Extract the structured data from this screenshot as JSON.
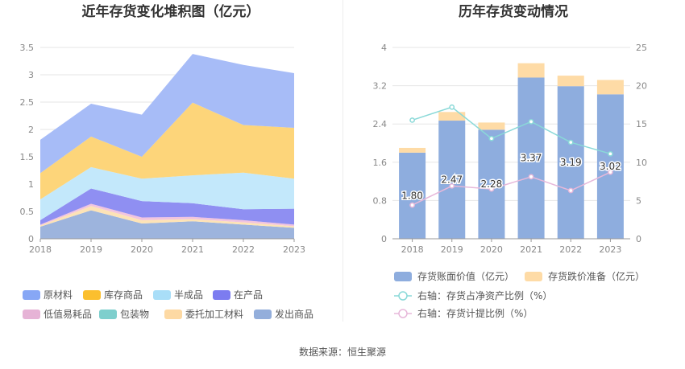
{
  "source": "数据来源：恒生聚源",
  "chart_data": [
    {
      "type": "area",
      "stacked": true,
      "title": "近年存货变化堆积图（亿元）",
      "x": [
        "2018",
        "2019",
        "2020",
        "2021",
        "2022",
        "2023"
      ],
      "ylim": [
        0,
        3.5
      ],
      "yticks": [
        "0",
        "0.5",
        "1",
        "1.5",
        "2",
        "2.5",
        "3",
        "3.5"
      ],
      "grid": true,
      "legend_position": "bottom",
      "series": [
        {
          "name": "发出商品",
          "color": "#9db4dd",
          "values": [
            0.22,
            0.52,
            0.28,
            0.32,
            0.26,
            0.2
          ]
        },
        {
          "name": "委托加工材料",
          "color": "#fde3b6",
          "values": [
            0.02,
            0.08,
            0.06,
            0.04,
            0.04,
            0.03
          ]
        },
        {
          "name": "包装物",
          "color": "#88d1cf",
          "values": [
            0.0,
            0.0,
            0.0,
            0.0,
            0.0,
            0.0
          ]
        },
        {
          "name": "低值易耗品",
          "color": "#f1c4df",
          "values": [
            0.02,
            0.04,
            0.05,
            0.04,
            0.04,
            0.03
          ]
        },
        {
          "name": "在产品",
          "color": "#8f8ff2",
          "values": [
            0.08,
            0.28,
            0.3,
            0.25,
            0.2,
            0.29
          ]
        },
        {
          "name": "半成品",
          "color": "#c3e8fb",
          "values": [
            0.38,
            0.39,
            0.41,
            0.51,
            0.67,
            0.55
          ]
        },
        {
          "name": "库存商品",
          "color": "#fdd57a",
          "values": [
            0.48,
            0.56,
            0.4,
            1.33,
            0.87,
            0.93
          ]
        },
        {
          "name": "原材料",
          "color": "#a7bcf7",
          "values": [
            0.61,
            0.6,
            0.77,
            0.89,
            1.1,
            1.0
          ]
        }
      ],
      "legend_order": [
        "原材料",
        "库存商品",
        "半成品",
        "在产品",
        "低值易耗品",
        "包装物",
        "委托加工材料",
        "发出商品"
      ],
      "legend_swatch_colors": {
        "原材料": "#87a7f5",
        "库存商品": "#fbbf2e",
        "半成品": "#a9def8",
        "在产品": "#7c7cf0",
        "低值易耗品": "#e6b3d6",
        "包装物": "#7ecfcd",
        "委托加工材料": "#fdd9a3",
        "发出商品": "#93aedb"
      }
    },
    {
      "type": "bar",
      "stacked": true,
      "title": "历年存货变动情况",
      "categories": [
        "2018",
        "2019",
        "2020",
        "2021",
        "2022",
        "2023"
      ],
      "ylim_left": [
        0,
        4
      ],
      "ylim_right": [
        0,
        25
      ],
      "yticks_left": [
        "0",
        "0.8",
        "1.6",
        "2.4",
        "3.2",
        "4"
      ],
      "yticks_right": [
        "0",
        "5",
        "10",
        "15",
        "20",
        "25"
      ],
      "grid": true,
      "legend_position": "bottom",
      "bars": [
        {
          "name": "存货账面价值（亿元）",
          "color": "#8eadde",
          "values": [
            1.8,
            2.47,
            2.28,
            3.37,
            3.19,
            3.02
          ],
          "labels": [
            "1.80",
            "2.47",
            "2.28",
            "3.37",
            "3.19",
            "3.02"
          ]
        },
        {
          "name": "存货跌价准备（亿元）",
          "color": "#fedba6",
          "values": [
            0.1,
            0.18,
            0.15,
            0.3,
            0.22,
            0.3
          ]
        }
      ],
      "lines": [
        {
          "name": "右轴：存货占净资产比例（%）",
          "color": "#8ad9d8",
          "values": [
            15.5,
            17.2,
            13.1,
            15.3,
            12.6,
            11.1
          ]
        },
        {
          "name": "右轴：存货计提比例（%）",
          "color": "#e7b8da",
          "values": [
            4.4,
            6.9,
            6.5,
            8.1,
            6.3,
            8.7
          ]
        }
      ]
    }
  ]
}
